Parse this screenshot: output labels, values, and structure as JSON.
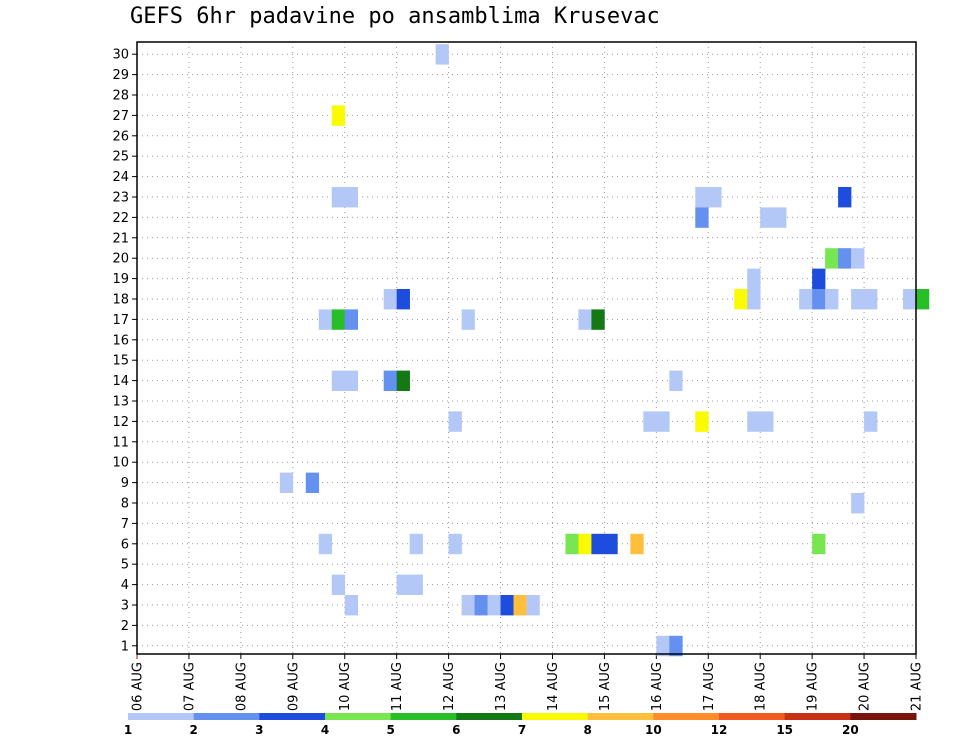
{
  "chart_data": {
    "type": "heatmap",
    "title": "GEFS 6hr padavine po ansamblima Krusevac",
    "xlabel": "",
    "ylabel": "",
    "y_range": [
      1,
      30
    ],
    "y_ticks": [
      1,
      2,
      3,
      4,
      5,
      6,
      7,
      8,
      9,
      10,
      11,
      12,
      13,
      14,
      15,
      16,
      17,
      18,
      19,
      20,
      21,
      22,
      23,
      24,
      25,
      26,
      27,
      28,
      29,
      30
    ],
    "x_range_days": [
      0,
      15
    ],
    "x_ticks": [
      "06 AUG",
      "07 AUG",
      "08 AUG",
      "09 AUG",
      "10 AUG",
      "11 AUG",
      "12 AUG",
      "13 AUG",
      "14 AUG",
      "15 AUG",
      "16 AUG",
      "17 AUG",
      "18 AUG",
      "19 AUG",
      "20 AUG",
      "21 AUG"
    ],
    "grid": true,
    "legend": {
      "placement": "bottom",
      "labels": [
        "1",
        "2",
        "3",
        "4",
        "5",
        "6",
        "7",
        "8",
        "10",
        "12",
        "15",
        "20"
      ],
      "colors": [
        "#b4c8f8",
        "#6490f0",
        "#1e4cdc",
        "#78e650",
        "#28be28",
        "#147814",
        "#fafa00",
        "#ffbe3c",
        "#ff8c28",
        "#f05a1e",
        "#c83214",
        "#78140a"
      ]
    },
    "cells": [
      {
        "member": 30,
        "t": 5.75,
        "c": 0
      },
      {
        "member": 27,
        "t": 3.75,
        "c": 6
      },
      {
        "member": 23,
        "t": 3.75,
        "c": 0
      },
      {
        "member": 23,
        "t": 4.0,
        "c": 0
      },
      {
        "member": 23,
        "t": 10.75,
        "c": 0
      },
      {
        "member": 23,
        "t": 11.0,
        "c": 0
      },
      {
        "member": 23,
        "t": 13.5,
        "c": 2
      },
      {
        "member": 22,
        "t": 10.75,
        "c": 1
      },
      {
        "member": 22,
        "t": 12.0,
        "c": 0
      },
      {
        "member": 22,
        "t": 12.25,
        "c": 0
      },
      {
        "member": 20,
        "t": 13.25,
        "c": 3
      },
      {
        "member": 20,
        "t": 13.5,
        "c": 1
      },
      {
        "member": 20,
        "t": 13.75,
        "c": 0
      },
      {
        "member": 19,
        "t": 11.75,
        "c": 0
      },
      {
        "member": 19,
        "t": 13.0,
        "c": 2
      },
      {
        "member": 18,
        "t": 4.75,
        "c": 0
      },
      {
        "member": 18,
        "t": 5.0,
        "c": 2
      },
      {
        "member": 18,
        "t": 11.5,
        "c": 6
      },
      {
        "member": 18,
        "t": 11.75,
        "c": 0
      },
      {
        "member": 18,
        "t": 12.75,
        "c": 0
      },
      {
        "member": 18,
        "t": 13.0,
        "c": 1
      },
      {
        "member": 18,
        "t": 13.25,
        "c": 0
      },
      {
        "member": 18,
        "t": 13.75,
        "c": 0
      },
      {
        "member": 18,
        "t": 14.0,
        "c": 0
      },
      {
        "member": 18,
        "t": 14.75,
        "c": 0
      },
      {
        "member": 18,
        "t": 15.0,
        "c": 4
      },
      {
        "member": 17,
        "t": 3.5,
        "c": 0
      },
      {
        "member": 17,
        "t": 3.75,
        "c": 4
      },
      {
        "member": 17,
        "t": 4.0,
        "c": 1
      },
      {
        "member": 17,
        "t": 6.25,
        "c": 0
      },
      {
        "member": 17,
        "t": 8.5,
        "c": 0
      },
      {
        "member": 17,
        "t": 8.75,
        "c": 5
      },
      {
        "member": 14,
        "t": 3.75,
        "c": 0
      },
      {
        "member": 14,
        "t": 4.0,
        "c": 0
      },
      {
        "member": 14,
        "t": 4.75,
        "c": 1
      },
      {
        "member": 14,
        "t": 5.0,
        "c": 5
      },
      {
        "member": 14,
        "t": 10.25,
        "c": 0
      },
      {
        "member": 12,
        "t": 6.0,
        "c": 0
      },
      {
        "member": 12,
        "t": 9.75,
        "c": 0
      },
      {
        "member": 12,
        "t": 10.0,
        "c": 0
      },
      {
        "member": 12,
        "t": 10.75,
        "c": 6
      },
      {
        "member": 12,
        "t": 11.75,
        "c": 0
      },
      {
        "member": 12,
        "t": 12.0,
        "c": 0
      },
      {
        "member": 12,
        "t": 14.0,
        "c": 0
      },
      {
        "member": 9,
        "t": 2.75,
        "c": 0
      },
      {
        "member": 9,
        "t": 3.25,
        "c": 1
      },
      {
        "member": 8,
        "t": 13.75,
        "c": 0
      },
      {
        "member": 6,
        "t": 3.5,
        "c": 0
      },
      {
        "member": 6,
        "t": 5.25,
        "c": 0
      },
      {
        "member": 6,
        "t": 6.0,
        "c": 0
      },
      {
        "member": 6,
        "t": 8.25,
        "c": 3
      },
      {
        "member": 6,
        "t": 8.5,
        "c": 6
      },
      {
        "member": 6,
        "t": 8.75,
        "c": 2
      },
      {
        "member": 6,
        "t": 9.0,
        "c": 2
      },
      {
        "member": 6,
        "t": 9.5,
        "c": 7
      },
      {
        "member": 6,
        "t": 13.0,
        "c": 3
      },
      {
        "member": 4,
        "t": 3.75,
        "c": 0
      },
      {
        "member": 4,
        "t": 5.0,
        "c": 0
      },
      {
        "member": 4,
        "t": 5.25,
        "c": 0
      },
      {
        "member": 3,
        "t": 4.0,
        "c": 0
      },
      {
        "member": 3,
        "t": 6.25,
        "c": 0
      },
      {
        "member": 3,
        "t": 6.5,
        "c": 1
      },
      {
        "member": 3,
        "t": 6.75,
        "c": 0
      },
      {
        "member": 3,
        "t": 7.0,
        "c": 2
      },
      {
        "member": 3,
        "t": 7.25,
        "c": 7
      },
      {
        "member": 3,
        "t": 7.5,
        "c": 0
      },
      {
        "member": 1,
        "t": 10.0,
        "c": 0
      },
      {
        "member": 1,
        "t": 10.25,
        "c": 1
      }
    ]
  }
}
